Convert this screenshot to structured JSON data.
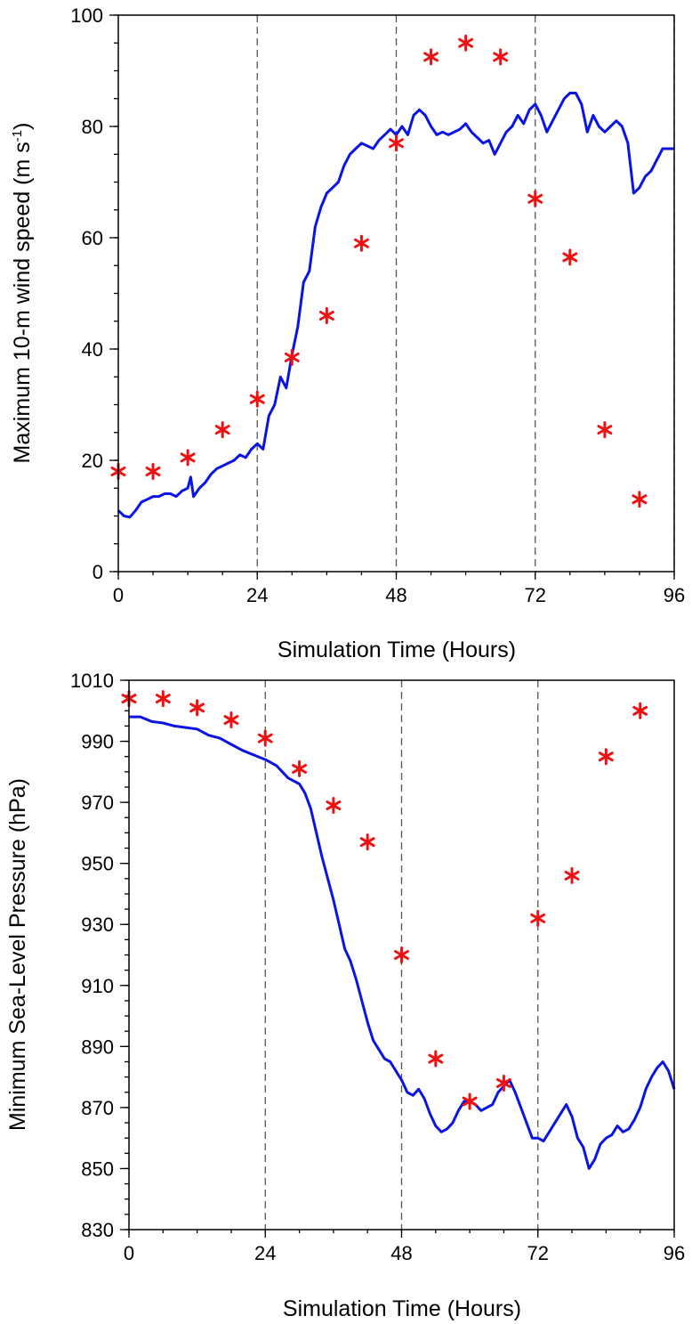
{
  "chart_data": [
    {
      "type": "line",
      "xlabel": "Simulation Time (Hours)",
      "ylabel_main": "Maximum 10-m wind speed (m s",
      "ylabel_sup": "-1",
      "ylabel_close": ")",
      "xlim": [
        0,
        96
      ],
      "ylim": [
        0,
        100
      ],
      "xticks": [
        0,
        24,
        48,
        72,
        96
      ],
      "xtick_labels": [
        "0",
        "24",
        "48",
        "72",
        "96"
      ],
      "yticks": [
        0,
        20,
        40,
        60,
        80,
        100
      ],
      "ytick_labels": [
        "0",
        "20",
        "40",
        "60",
        "80",
        "100"
      ],
      "vlines": [
        24,
        48,
        72,
        96
      ],
      "colors": {
        "model": "#0a14e6",
        "observed": "#ee1111"
      },
      "model_line": {
        "x": [
          0,
          1,
          2,
          3,
          4,
          5,
          6,
          7,
          8,
          9,
          10,
          11,
          12,
          12.5,
          13,
          14,
          15,
          16,
          17,
          18,
          19,
          20,
          21,
          22,
          23,
          24,
          25,
          26,
          27,
          28,
          29,
          30,
          31,
          32,
          33,
          34,
          35,
          36,
          37,
          38,
          39,
          40,
          41,
          42,
          43,
          44,
          45,
          46,
          47,
          48,
          49,
          50,
          51,
          52,
          53,
          54,
          55,
          56,
          57,
          58,
          59,
          60,
          61,
          62,
          63,
          64,
          65,
          66,
          67,
          68,
          69,
          70,
          71,
          72,
          73,
          74,
          75,
          76,
          77,
          78,
          79,
          80,
          81,
          82,
          83,
          84,
          85,
          86,
          87,
          88,
          89,
          90,
          91,
          92,
          93,
          94,
          95,
          96
        ],
        "y": [
          11,
          10,
          9.8,
          11,
          12.5,
          13,
          13.5,
          13.5,
          14,
          14,
          13.5,
          14.5,
          15,
          17,
          13.5,
          15,
          16,
          17.5,
          18.5,
          19,
          19.5,
          20,
          21,
          20.5,
          22,
          23,
          22,
          28,
          30,
          35,
          33,
          39,
          44,
          52,
          54,
          62,
          65.5,
          68,
          69,
          70,
          73,
          75,
          76,
          77,
          76.5,
          76,
          77.5,
          78.5,
          79.5,
          78.5,
          80,
          78.5,
          82,
          83,
          82,
          80,
          78.5,
          79,
          78.5,
          79,
          79.5,
          80.5,
          79,
          78,
          77,
          77.5,
          75,
          77,
          79,
          80,
          82,
          80.5,
          83,
          84,
          82,
          79,
          81,
          83,
          85,
          86,
          86,
          84,
          79,
          82,
          80,
          79,
          80,
          81,
          80,
          77,
          68,
          69,
          71,
          72,
          74,
          76,
          76,
          76
        ]
      },
      "observed": {
        "x": [
          0,
          6,
          12,
          18,
          24,
          30,
          36,
          42,
          48,
          54,
          60,
          66,
          72,
          78,
          84,
          90
        ],
        "y": [
          18,
          18,
          20.5,
          25.5,
          31,
          38.5,
          46,
          59,
          77,
          92.5,
          95,
          92.5,
          67,
          56.5,
          25.5,
          13
        ]
      }
    },
    {
      "type": "line",
      "xlabel": "Simulation Time (Hours)",
      "ylabel": "Minimum Sea-Level Pressure (hPa)",
      "xlim": [
        0,
        96
      ],
      "ylim": [
        830,
        1010
      ],
      "xticks": [
        0,
        24,
        48,
        72,
        96
      ],
      "xtick_labels": [
        "0",
        "24",
        "48",
        "72",
        "96"
      ],
      "yticks": [
        830,
        850,
        870,
        890,
        910,
        930,
        950,
        970,
        990,
        1010
      ],
      "ytick_labels": [
        "830",
        "850",
        "870",
        "890",
        "910",
        "930",
        "950",
        "970",
        "990",
        "1010"
      ],
      "vlines": [
        24,
        48,
        72
      ],
      "colors": {
        "model": "#0a14e6",
        "observed": "#ee1111"
      },
      "model_line": {
        "x": [
          0,
          2,
          4,
          6,
          8,
          10,
          12,
          14,
          16,
          18,
          20,
          22,
          24,
          26,
          28,
          30,
          31,
          32,
          33,
          34,
          35,
          36,
          37,
          38,
          39,
          40,
          41,
          42,
          43,
          44,
          45,
          46,
          47,
          48,
          49,
          50,
          51,
          52,
          53,
          54,
          55,
          56,
          57,
          58,
          59,
          60,
          61,
          62,
          63,
          64,
          65,
          66,
          67,
          68,
          69,
          70,
          71,
          72,
          73,
          74,
          75,
          76,
          77,
          78,
          79,
          80,
          81,
          82,
          83,
          84,
          85,
          86,
          87,
          88,
          89,
          90,
          91,
          92,
          93,
          94,
          95,
          96
        ],
        "y": [
          998,
          998,
          996.5,
          996,
          995,
          994.5,
          994,
          992,
          991,
          989,
          987,
          985.5,
          984,
          982,
          978,
          976,
          973,
          968,
          960,
          952,
          945,
          938,
          930,
          922,
          918,
          912,
          905,
          898,
          892,
          889,
          886,
          885,
          882,
          879,
          875,
          874,
          876,
          873,
          868,
          864,
          862,
          863,
          865,
          869,
          872,
          872,
          871,
          869,
          870,
          871,
          875,
          877,
          879,
          875,
          870,
          865,
          860,
          860,
          859,
          862,
          865,
          868,
          871,
          867,
          860,
          857,
          850,
          853,
          858,
          860,
          861,
          864,
          862,
          863,
          866,
          870,
          876,
          880,
          883,
          885,
          882,
          876
        ]
      },
      "observed": {
        "x": [
          0,
          6,
          12,
          18,
          24,
          30,
          36,
          42,
          48,
          54,
          60,
          66,
          72,
          78,
          84,
          90
        ],
        "y": [
          1004,
          1004,
          1001,
          997,
          991,
          981,
          969,
          957,
          920,
          886,
          872,
          878,
          932,
          946,
          985,
          1000
        ]
      }
    }
  ]
}
